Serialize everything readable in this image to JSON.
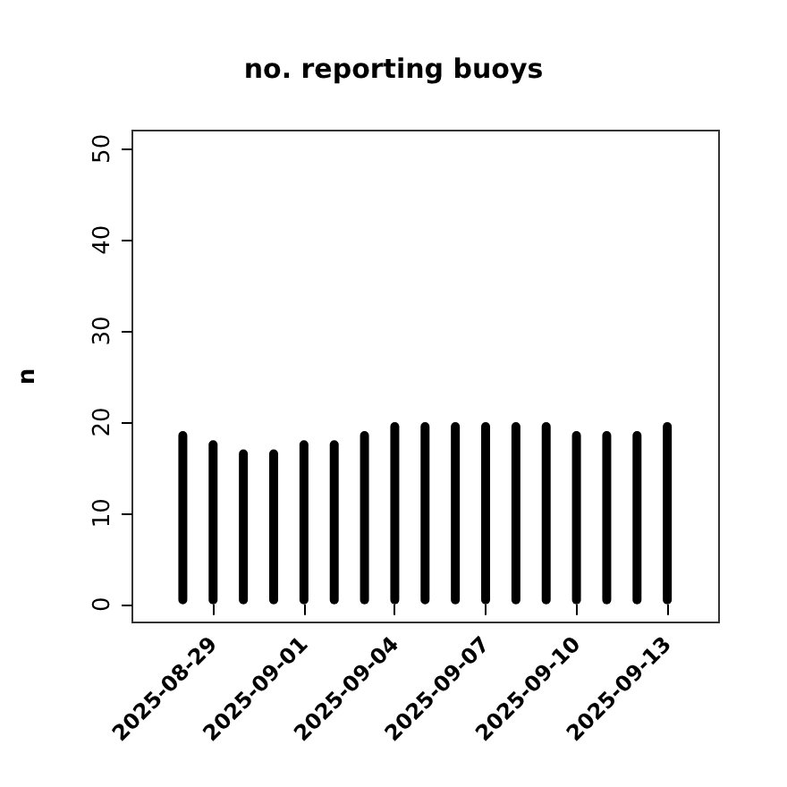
{
  "chart_data": {
    "type": "bar",
    "title": "no. reporting buoys",
    "ylabel": "n",
    "x": [
      "2025-08-28",
      "2025-08-29",
      "2025-08-30",
      "2025-08-31",
      "2025-09-01",
      "2025-09-02",
      "2025-09-03",
      "2025-09-04",
      "2025-09-05",
      "2025-09-06",
      "2025-09-07",
      "2025-09-08",
      "2025-09-09",
      "2025-09-10",
      "2025-09-11",
      "2025-09-12",
      "2025-09-13"
    ],
    "values": [
      19,
      18,
      17,
      17,
      18,
      18,
      19,
      20,
      20,
      20,
      20,
      20,
      20,
      19,
      19,
      19,
      20
    ],
    "color": "#000000",
    "xlim": [
      "2025-08-26T08:00",
      "2025-09-14T17:00"
    ],
    "xticks": [
      "2025-08-29",
      "2025-09-01",
      "2025-09-04",
      "2025-09-07",
      "2025-09-10",
      "2025-09-13"
    ],
    "ylim": [
      -2,
      52
    ],
    "yticks": [
      0,
      10,
      20,
      30,
      40,
      50
    ],
    "grid": false
  }
}
